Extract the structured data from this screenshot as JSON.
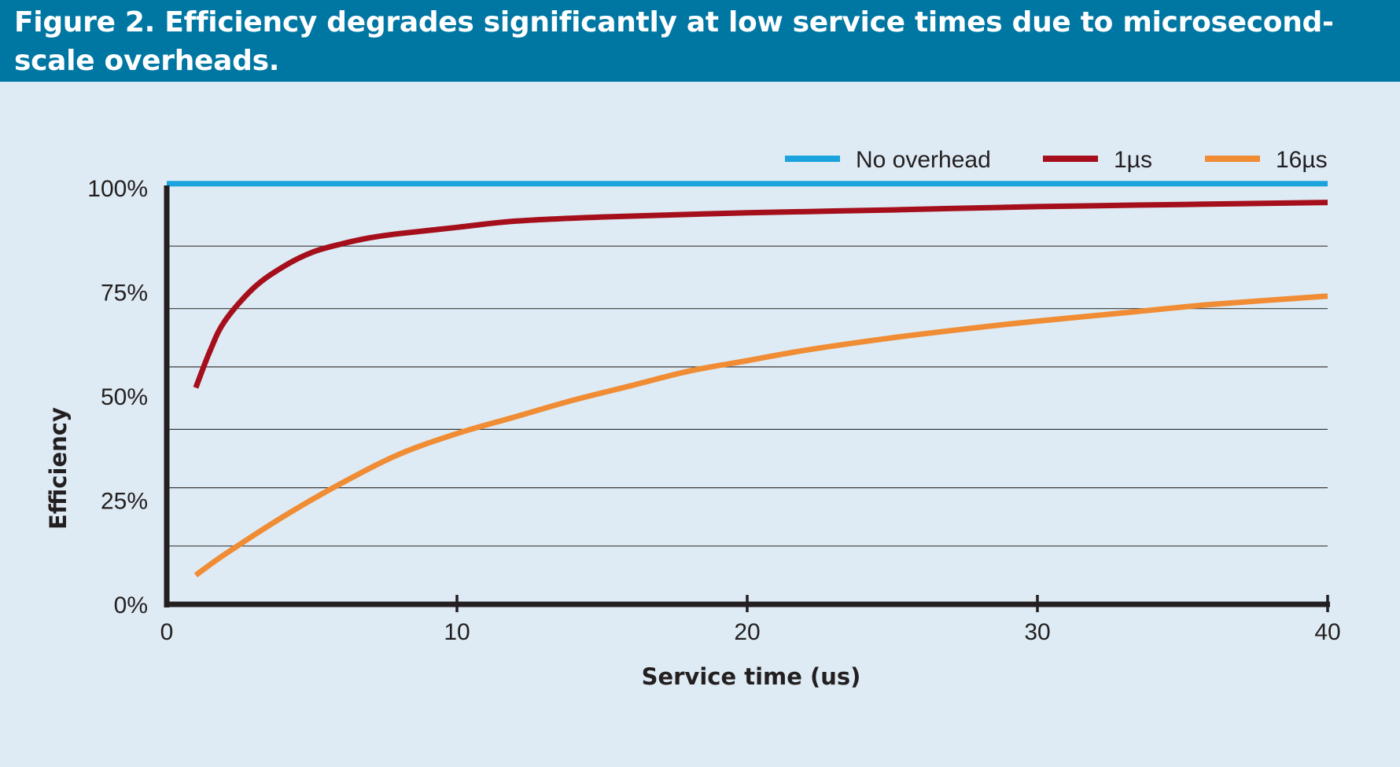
{
  "figure": {
    "title": "Figure 2. Efficiency degrades significantly at low service times due to microsecond-scale overheads."
  },
  "chart_data": {
    "type": "line",
    "title": "Figure 2. Efficiency degrades significantly at low service times due to microsecond-scale overheads.",
    "xlabel": "Service time (us)",
    "ylabel": "Efficiency",
    "xlim": [
      0,
      40
    ],
    "ylim": [
      0,
      100
    ],
    "x_ticks": [
      0,
      10,
      20,
      30,
      40
    ],
    "x_tick_labels": [
      "0",
      "10",
      "20",
      "30",
      "40"
    ],
    "y_ticks": [
      0,
      25,
      50,
      75,
      100
    ],
    "y_tick_labels": [
      "0%",
      "25%",
      "50%",
      "75%",
      "100%"
    ],
    "grid_y": [
      14,
      28,
      42,
      57,
      71,
      86
    ],
    "grid": true,
    "legend_position": "top-right",
    "series": [
      {
        "name": "No overhead",
        "color": "#1aa3dc",
        "x": [
          0,
          40
        ],
        "y": [
          101,
          101
        ]
      },
      {
        "name": "1µs",
        "color": "#a50f1c",
        "x": [
          1,
          1.5,
          2,
          3,
          4,
          5,
          6,
          7,
          8,
          10,
          12,
          15,
          20,
          25,
          30,
          35,
          40
        ],
        "y": [
          52,
          61,
          68,
          76,
          81,
          84.5,
          86.5,
          88,
          89,
          90.5,
          92,
          93,
          94,
          94.7,
          95.5,
          96,
          96.5
        ]
      },
      {
        "name": "16µs",
        "color": "#f08c34",
        "x": [
          1,
          2,
          4,
          6,
          8,
          10,
          12,
          14,
          16,
          18,
          20,
          22,
          25,
          28,
          30,
          33,
          36,
          40
        ],
        "y": [
          7,
          12,
          21,
          29,
          36,
          41,
          45,
          49,
          52.5,
          56,
          58.5,
          61,
          64,
          66.5,
          68,
          70,
          72,
          74
        ]
      }
    ]
  }
}
